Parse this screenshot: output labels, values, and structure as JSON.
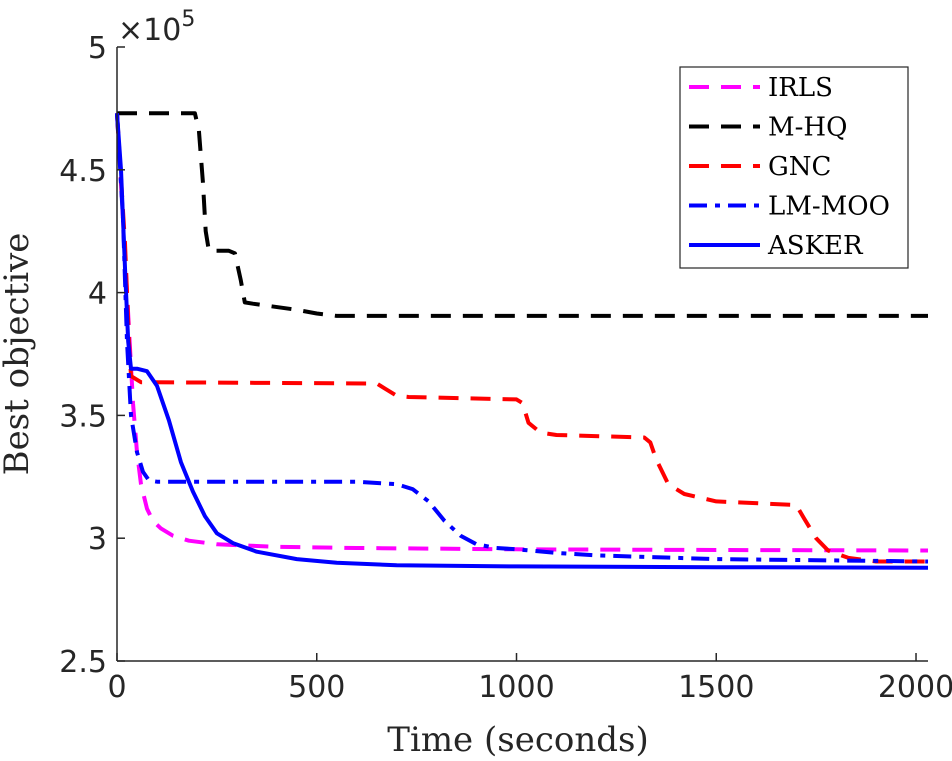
{
  "chart_data": {
    "type": "line",
    "title": "",
    "xlabel": "Time (seconds)",
    "ylabel": "Best objective",
    "xlim": [
      0,
      2030
    ],
    "ylim": [
      2.5,
      5
    ],
    "y_scale_label": {
      "base": "×10",
      "exponent": "5"
    },
    "x_ticks": [
      {
        "value": 0,
        "label": "0"
      },
      {
        "value": 500,
        "label": "500"
      },
      {
        "value": 1000,
        "label": "1000"
      },
      {
        "value": 1500,
        "label": "1500"
      },
      {
        "value": 2000,
        "label": "2000"
      }
    ],
    "y_ticks": [
      {
        "value": 2.5,
        "label": "2.5"
      },
      {
        "value": 3,
        "label": "3"
      },
      {
        "value": 3.5,
        "label": "3.5"
      },
      {
        "value": 4,
        "label": "4"
      },
      {
        "value": 4.5,
        "label": "4.5"
      },
      {
        "value": 5,
        "label": "5"
      }
    ],
    "grid": false,
    "legend_position": "top-right",
    "series": [
      {
        "name": "IRLS",
        "color": "#ff00ff",
        "dash": "dashed",
        "points": [
          [
            0,
            4.73
          ],
          [
            15,
            4.3
          ],
          [
            30,
            3.85
          ],
          [
            40,
            3.55
          ],
          [
            50,
            3.35
          ],
          [
            60,
            3.22
          ],
          [
            75,
            3.12
          ],
          [
            90,
            3.07
          ],
          [
            110,
            3.04
          ],
          [
            140,
            3.01
          ],
          [
            180,
            2.99
          ],
          [
            250,
            2.975
          ],
          [
            400,
            2.965
          ],
          [
            600,
            2.96
          ],
          [
            1000,
            2.955
          ],
          [
            1500,
            2.952
          ],
          [
            2030,
            2.95
          ]
        ]
      },
      {
        "name": "M-HQ",
        "color": "#000000",
        "dash": "dashed",
        "points": [
          [
            0,
            4.73
          ],
          [
            195,
            4.73
          ],
          [
            205,
            4.66
          ],
          [
            215,
            4.45
          ],
          [
            222,
            4.25
          ],
          [
            230,
            4.17
          ],
          [
            280,
            4.17
          ],
          [
            295,
            4.16
          ],
          [
            310,
            4.05
          ],
          [
            320,
            3.96
          ],
          [
            340,
            3.955
          ],
          [
            450,
            3.93
          ],
          [
            500,
            3.915
          ],
          [
            550,
            3.905
          ],
          [
            1000,
            3.905
          ],
          [
            2030,
            3.905
          ]
        ]
      },
      {
        "name": "GNC",
        "color": "#ff0000",
        "dash": "dashed",
        "points": [
          [
            0,
            4.73
          ],
          [
            20,
            4.2
          ],
          [
            30,
            3.8
          ],
          [
            35,
            3.66
          ],
          [
            60,
            3.635
          ],
          [
            650,
            3.63
          ],
          [
            670,
            3.61
          ],
          [
            700,
            3.58
          ],
          [
            730,
            3.575
          ],
          [
            1000,
            3.565
          ],
          [
            1015,
            3.55
          ],
          [
            1030,
            3.47
          ],
          [
            1060,
            3.43
          ],
          [
            1100,
            3.42
          ],
          [
            1320,
            3.41
          ],
          [
            1335,
            3.39
          ],
          [
            1350,
            3.32
          ],
          [
            1380,
            3.22
          ],
          [
            1420,
            3.18
          ],
          [
            1500,
            3.15
          ],
          [
            1700,
            3.135
          ],
          [
            1720,
            3.08
          ],
          [
            1750,
            3.0
          ],
          [
            1780,
            2.95
          ],
          [
            1830,
            2.92
          ],
          [
            1900,
            2.905
          ],
          [
            2030,
            2.905
          ]
        ]
      },
      {
        "name": "LM-MOO",
        "color": "#0000ff",
        "dash": "dashdot",
        "points": [
          [
            0,
            4.73
          ],
          [
            15,
            4.3
          ],
          [
            25,
            3.8
          ],
          [
            35,
            3.5
          ],
          [
            50,
            3.35
          ],
          [
            65,
            3.27
          ],
          [
            80,
            3.235
          ],
          [
            100,
            3.23
          ],
          [
            300,
            3.23
          ],
          [
            600,
            3.23
          ],
          [
            700,
            3.22
          ],
          [
            740,
            3.2
          ],
          [
            780,
            3.15
          ],
          [
            820,
            3.07
          ],
          [
            860,
            3.01
          ],
          [
            900,
            2.975
          ],
          [
            950,
            2.96
          ],
          [
            1000,
            2.955
          ],
          [
            1100,
            2.94
          ],
          [
            1200,
            2.93
          ],
          [
            1500,
            2.915
          ],
          [
            2030,
            2.905
          ]
        ]
      },
      {
        "name": "ASKER",
        "color": "#0000ff",
        "dash": "solid",
        "points": [
          [
            0,
            4.73
          ],
          [
            10,
            4.5
          ],
          [
            20,
            4.1
          ],
          [
            28,
            3.8
          ],
          [
            35,
            3.69
          ],
          [
            50,
            3.69
          ],
          [
            75,
            3.68
          ],
          [
            100,
            3.62
          ],
          [
            130,
            3.48
          ],
          [
            160,
            3.31
          ],
          [
            190,
            3.19
          ],
          [
            220,
            3.09
          ],
          [
            250,
            3.02
          ],
          [
            290,
            2.98
          ],
          [
            350,
            2.945
          ],
          [
            450,
            2.915
          ],
          [
            550,
            2.9
          ],
          [
            700,
            2.89
          ],
          [
            1000,
            2.885
          ],
          [
            1500,
            2.882
          ],
          [
            2030,
            2.88
          ]
        ]
      }
    ]
  }
}
